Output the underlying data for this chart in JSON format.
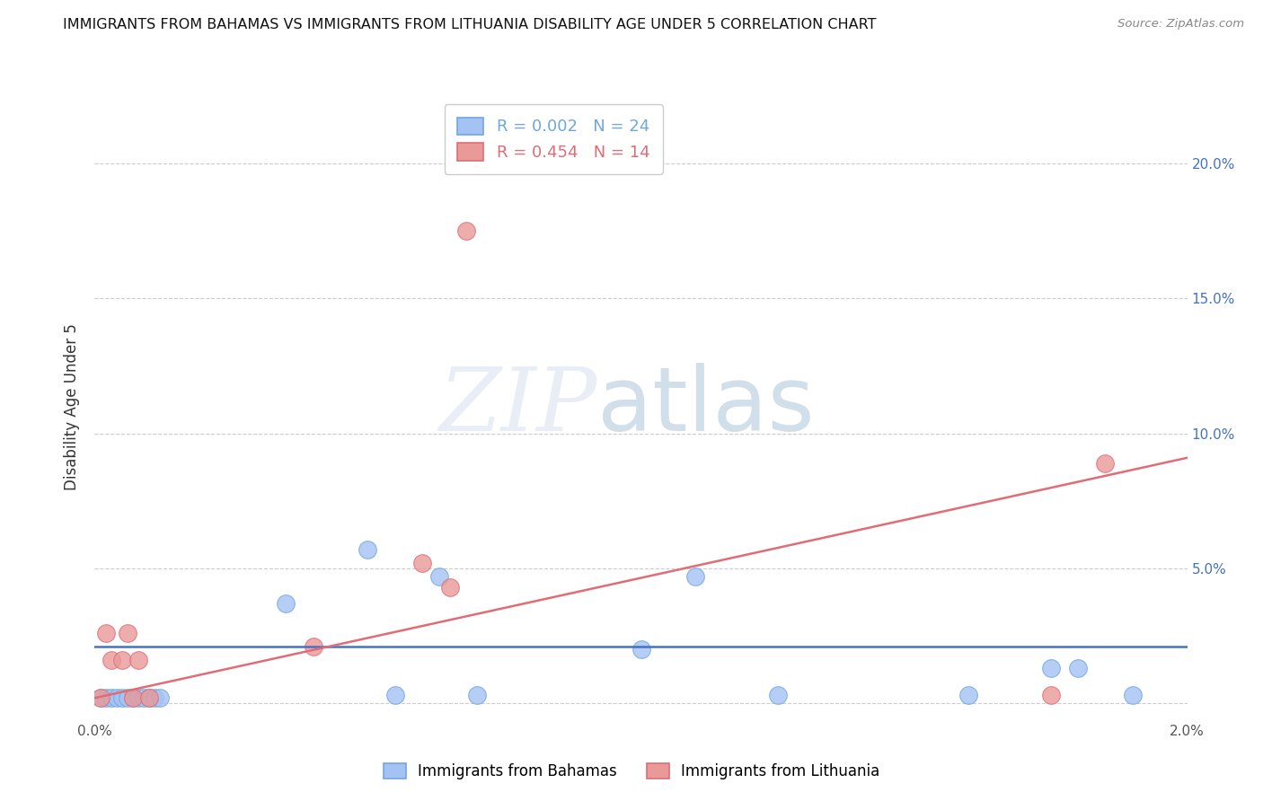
{
  "title": "IMMIGRANTS FROM BAHAMAS VS IMMIGRANTS FROM LITHUANIA DISABILITY AGE UNDER 5 CORRELATION CHART",
  "source": "Source: ZipAtlas.com",
  "ylabel": "Disability Age Under 5",
  "xlabel_bahamas": "Immigrants from Bahamas",
  "xlabel_lithuania": "Immigrants from Lithuania",
  "r_bahamas": 0.002,
  "n_bahamas": 24,
  "r_lithuania": 0.454,
  "n_lithuania": 14,
  "scatter_color_bahamas": "#a4c2f4",
  "scatter_edge_bahamas": "#6fa8dc",
  "scatter_color_lithuania": "#ea9999",
  "scatter_edge_lithuania": "#e06c75",
  "trend_color_bahamas": "#4472c4",
  "trend_color_lithuania": "#e06c75",
  "yaxis_label_color": "#4472c4",
  "xlim": [
    0.0,
    0.02
  ],
  "ylim": [
    -0.005,
    0.225
  ],
  "yticks": [
    0.0,
    0.05,
    0.1,
    0.15,
    0.2
  ],
  "ytick_labels": [
    "",
    "5.0%",
    "10.0%",
    "15.0%",
    "20.0%"
  ],
  "xticks": [
    0.0,
    0.005,
    0.01,
    0.015,
    0.02
  ],
  "xtick_labels": [
    "0.0%",
    "",
    "",
    "",
    "2.0%"
  ],
  "bahamas_x": [
    0.0001,
    0.0002,
    0.0003,
    0.0004,
    0.0005,
    0.0006,
    0.0007,
    0.0008,
    0.0009,
    0.001,
    0.0011,
    0.0012,
    0.0035,
    0.005,
    0.0055,
    0.0063,
    0.007,
    0.01,
    0.011,
    0.0125,
    0.016,
    0.0175,
    0.018,
    0.019
  ],
  "bahamas_y": [
    0.002,
    0.002,
    0.002,
    0.002,
    0.002,
    0.002,
    0.002,
    0.002,
    0.002,
    0.002,
    0.002,
    0.002,
    0.037,
    0.057,
    0.003,
    0.047,
    0.003,
    0.02,
    0.047,
    0.003,
    0.003,
    0.013,
    0.013,
    0.003
  ],
  "lithuania_x": [
    0.0001,
    0.0002,
    0.0003,
    0.0005,
    0.0006,
    0.0007,
    0.0008,
    0.001,
    0.004,
    0.006,
    0.0065,
    0.0068,
    0.0175,
    0.0185
  ],
  "lithuania_y": [
    0.002,
    0.026,
    0.016,
    0.016,
    0.026,
    0.002,
    0.016,
    0.002,
    0.021,
    0.052,
    0.043,
    0.175,
    0.003,
    0.089
  ],
  "trend_bahamas_x0": 0.0,
  "trend_bahamas_x1": 0.02,
  "trend_bahamas_y0": 0.021,
  "trend_bahamas_y1": 0.021,
  "trend_lithuania_x0": 0.0,
  "trend_lithuania_x1": 0.02,
  "trend_lithuania_y0": 0.002,
  "trend_lithuania_y1": 0.091
}
